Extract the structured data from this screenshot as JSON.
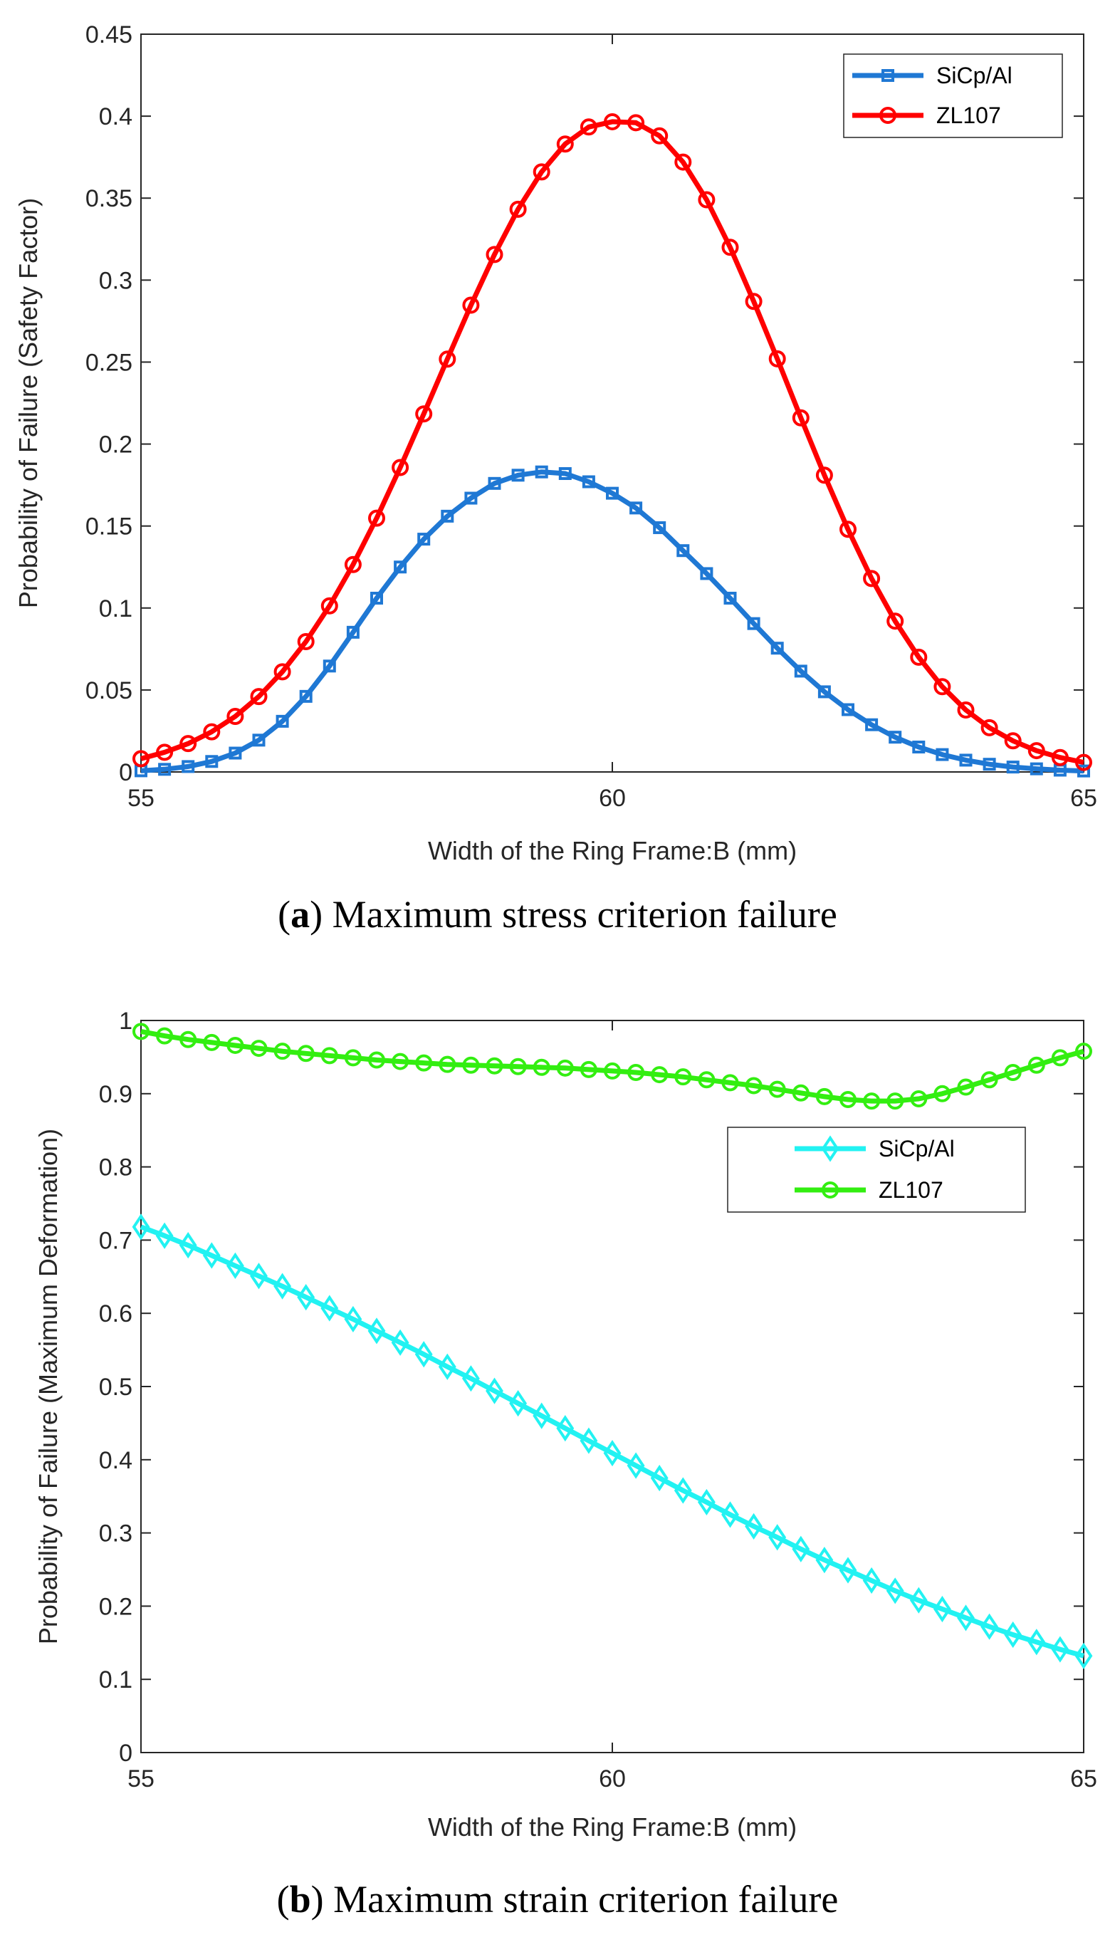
{
  "figure": {
    "caption_a": {
      "letter": "a",
      "text": "Maximum stress criterion failure"
    },
    "caption_b": {
      "letter": "b",
      "text": "Maximum strain criterion failure"
    }
  },
  "colors": {
    "sicp_a": "#1f78d4",
    "zl107_a": "#ff0000",
    "sicp_b": "#22f2f2",
    "zl107_b": "#33ee11",
    "axis": "#262626"
  },
  "chart_data": [
    {
      "type": "line",
      "title": "",
      "xlabel": "Width of the Ring Frame:B (mm)",
      "ylabel": "Probability of Failure (Safety Factor)",
      "xlim": [
        55,
        65
      ],
      "ylim": [
        0,
        0.45
      ],
      "xticks": [
        "55",
        "60",
        "65"
      ],
      "yticks": [
        "0",
        "0.05",
        "0.1",
        "0.15",
        "0.2",
        "0.25",
        "0.3",
        "0.35",
        "0.4",
        "0.45"
      ],
      "legend_position": "top-right",
      "x": [
        55.0,
        55.25,
        55.5,
        55.75,
        56.0,
        56.25,
        56.5,
        56.75,
        57.0,
        57.25,
        57.5,
        57.75,
        58.0,
        58.25,
        58.5,
        58.75,
        59.0,
        59.25,
        59.5,
        59.75,
        60.0,
        60.25,
        60.5,
        60.75,
        61.0,
        61.25,
        61.5,
        61.75,
        62.0,
        62.25,
        62.5,
        62.75,
        63.0,
        63.25,
        63.5,
        63.75,
        64.0,
        64.25,
        64.5,
        64.75,
        65.0
      ],
      "series": [
        {
          "name": "SiCp/Al",
          "marker": "square",
          "values": [
            0.0007,
            0.0016,
            0.0033,
            0.0064,
            0.0115,
            0.0194,
            0.0309,
            0.0461,
            0.0646,
            0.0852,
            0.106,
            0.125,
            0.142,
            0.156,
            0.167,
            0.176,
            0.181,
            0.183,
            0.182,
            0.177,
            0.17,
            0.161,
            0.149,
            0.135,
            0.121,
            0.106,
            0.0905,
            0.0755,
            0.0615,
            0.0489,
            0.038,
            0.0288,
            0.0212,
            0.0152,
            0.0106,
            0.0072,
            0.0047,
            0.003,
            0.0019,
            0.0011,
            0.0006
          ]
        },
        {
          "name": "ZL107",
          "marker": "circle",
          "values": [
            0.0081,
            0.012,
            0.0173,
            0.0245,
            0.0339,
            0.046,
            0.0611,
            0.0795,
            0.1013,
            0.1265,
            0.1548,
            0.1857,
            0.2184,
            0.2518,
            0.2847,
            0.3156,
            0.3432,
            0.366,
            0.383,
            0.3934,
            0.3966,
            0.396,
            0.388,
            0.372,
            0.349,
            0.32,
            0.287,
            0.252,
            0.216,
            0.181,
            0.148,
            0.118,
            0.092,
            0.07,
            0.052,
            0.0378,
            0.027,
            0.019,
            0.013,
            0.0088,
            0.0058
          ]
        }
      ]
    },
    {
      "type": "line",
      "title": "",
      "xlabel": "Width of the Ring Frame:B (mm)",
      "ylabel": "Probability of Failure (Maximum Deformation)",
      "xlim": [
        55,
        65
      ],
      "ylim": [
        0,
        1
      ],
      "xticks": [
        "55",
        "60",
        "65"
      ],
      "yticks": [
        "0",
        "0.1",
        "0.2",
        "0.3",
        "0.4",
        "0.5",
        "0.6",
        "0.7",
        "0.8",
        "0.9",
        "1"
      ],
      "legend_position": "right",
      "x": [
        55.0,
        55.25,
        55.5,
        55.75,
        56.0,
        56.25,
        56.5,
        56.75,
        57.0,
        57.25,
        57.5,
        57.75,
        58.0,
        58.25,
        58.5,
        58.75,
        59.0,
        59.25,
        59.5,
        59.75,
        60.0,
        60.25,
        60.5,
        60.75,
        61.0,
        61.25,
        61.5,
        61.75,
        62.0,
        62.25,
        62.5,
        62.75,
        63.0,
        63.25,
        63.5,
        63.75,
        64.0,
        64.25,
        64.5,
        64.75,
        65.0
      ],
      "series": [
        {
          "name": "SiCp/Al",
          "marker": "diamond",
          "values": [
            0.718,
            0.706,
            0.693,
            0.679,
            0.665,
            0.651,
            0.637,
            0.622,
            0.607,
            0.592,
            0.576,
            0.56,
            0.544,
            0.527,
            0.511,
            0.494,
            0.477,
            0.46,
            0.443,
            0.426,
            0.409,
            0.392,
            0.375,
            0.358,
            0.342,
            0.325,
            0.309,
            0.294,
            0.278,
            0.263,
            0.249,
            0.235,
            0.221,
            0.208,
            0.196,
            0.184,
            0.172,
            0.161,
            0.151,
            0.141,
            0.132
          ]
        },
        {
          "name": "ZL107",
          "marker": "circle",
          "values": [
            0.985,
            0.979,
            0.974,
            0.97,
            0.966,
            0.962,
            0.958,
            0.955,
            0.952,
            0.949,
            0.946,
            0.944,
            0.942,
            0.94,
            0.939,
            0.938,
            0.937,
            0.936,
            0.935,
            0.933,
            0.931,
            0.929,
            0.926,
            0.923,
            0.919,
            0.915,
            0.911,
            0.906,
            0.901,
            0.896,
            0.892,
            0.89,
            0.89,
            0.893,
            0.9,
            0.909,
            0.919,
            0.929,
            0.939,
            0.949,
            0.958
          ]
        }
      ]
    }
  ]
}
